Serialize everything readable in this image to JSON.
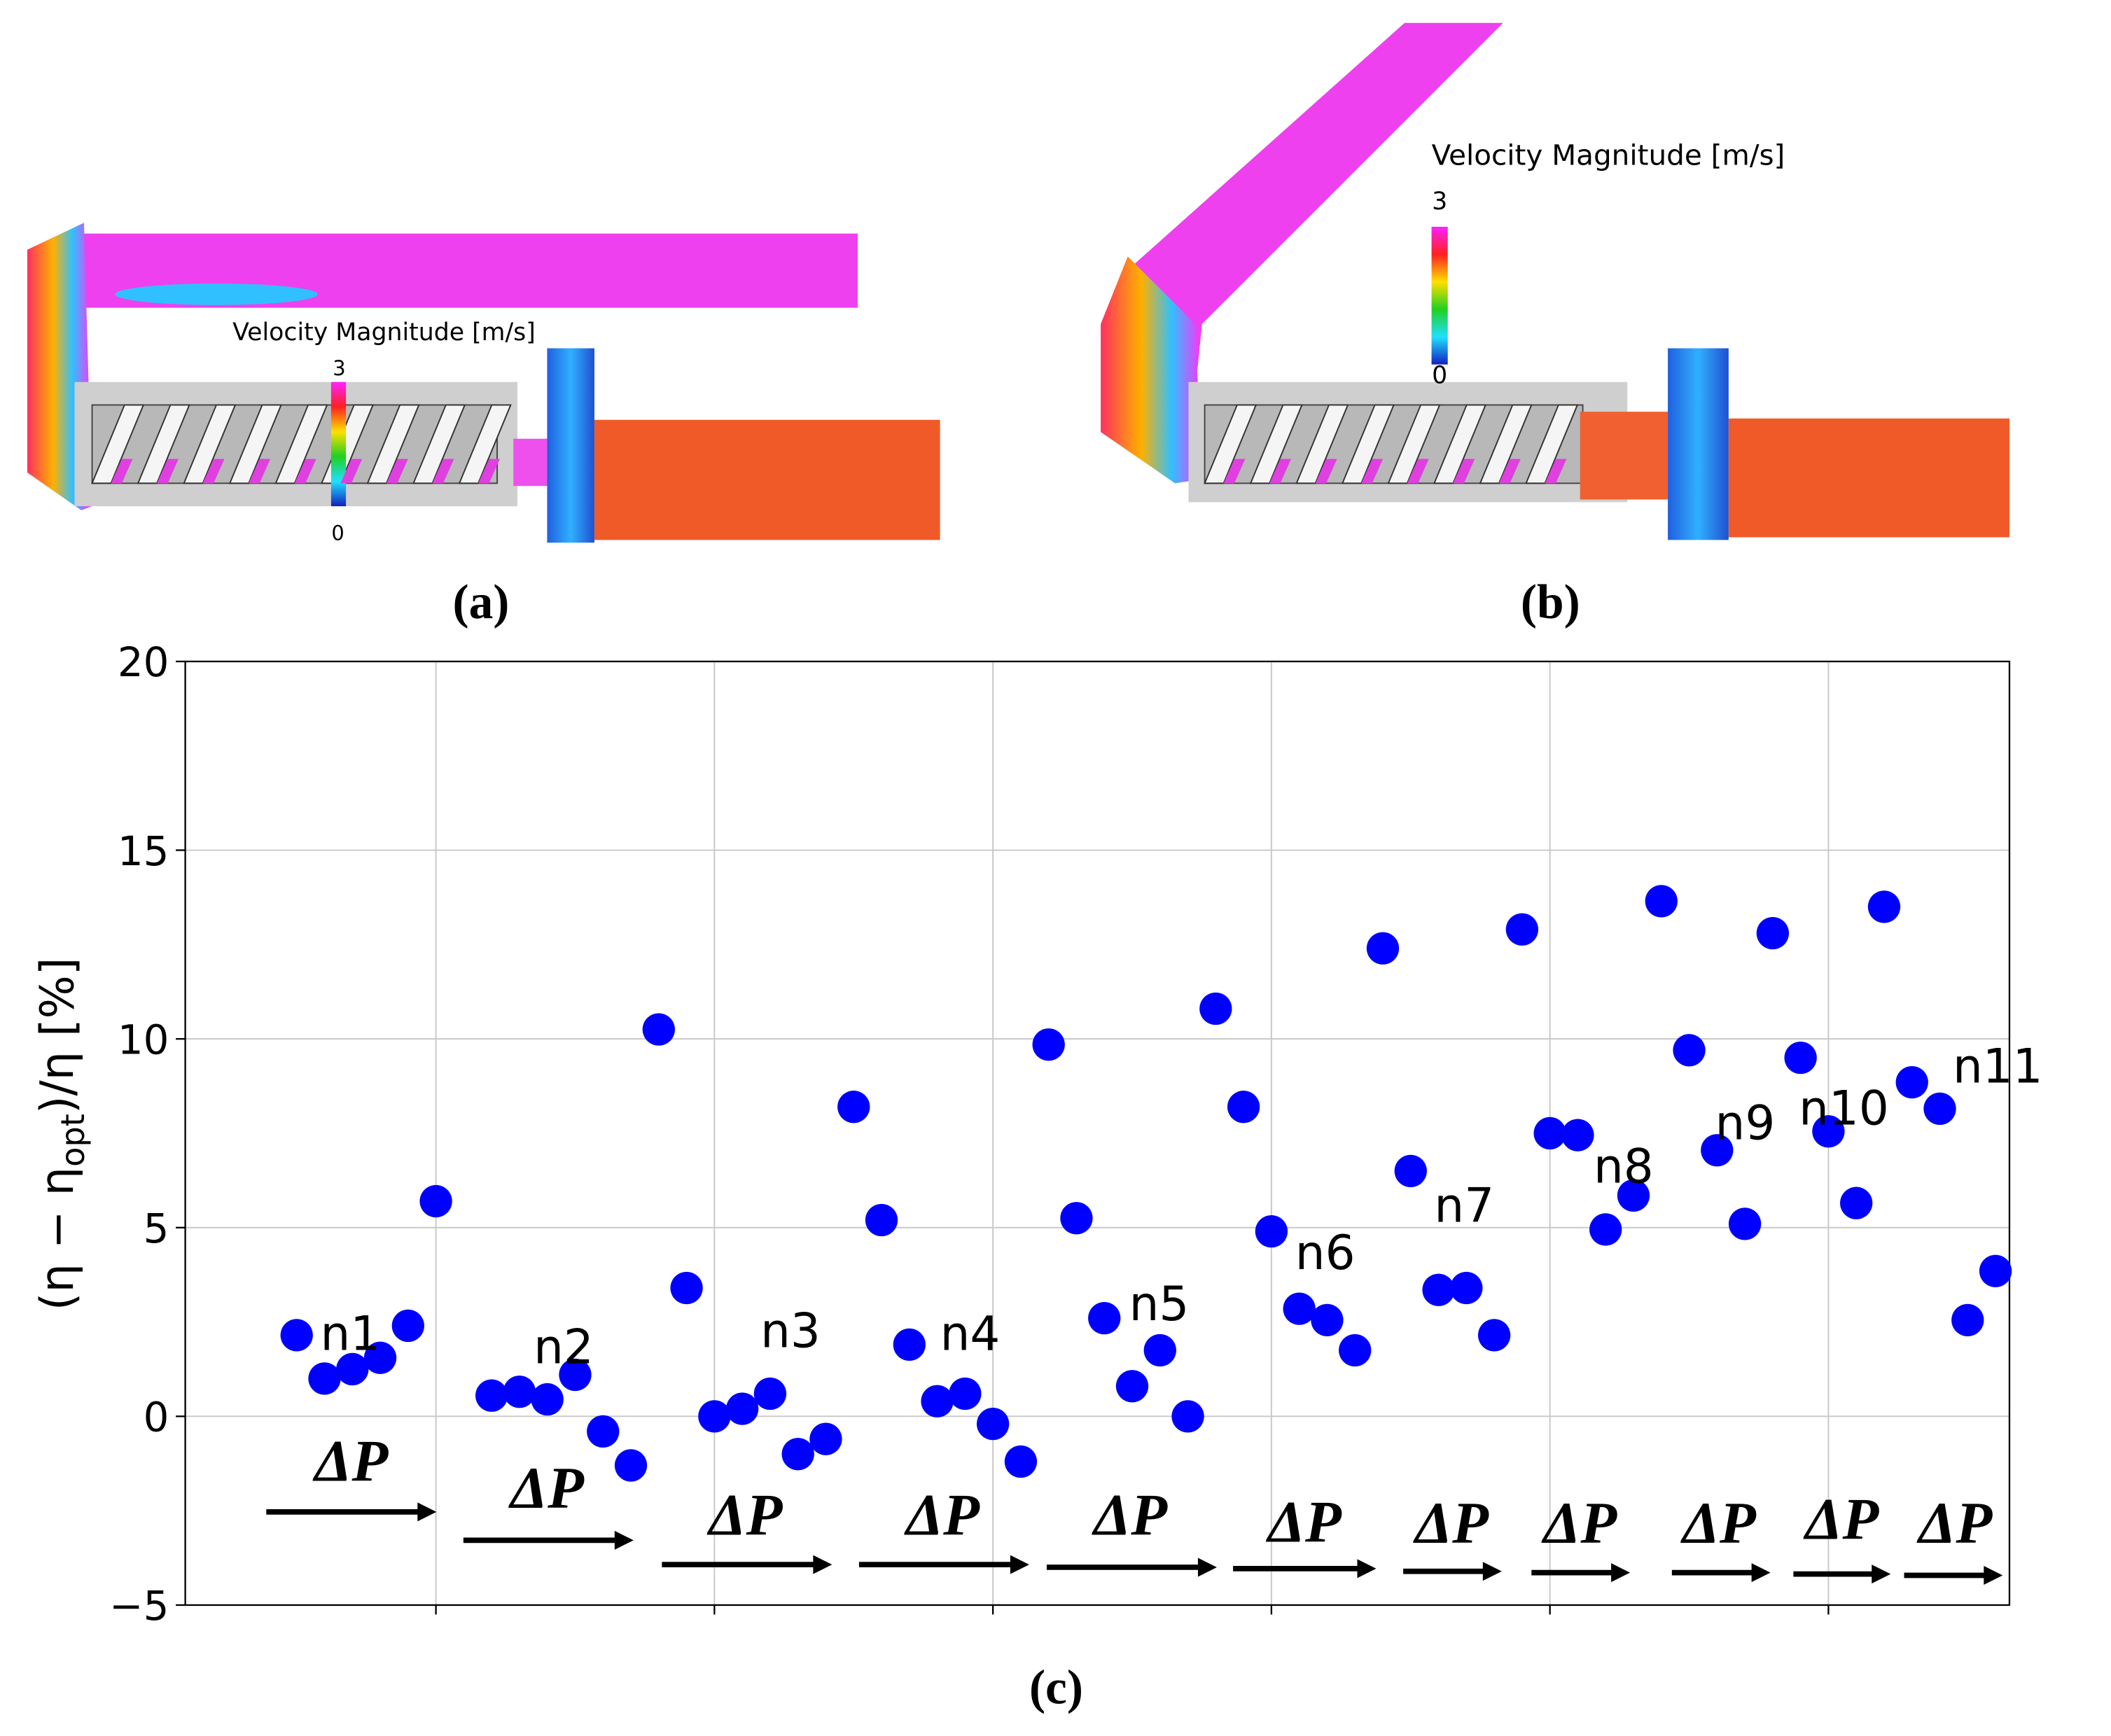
{
  "panels": {
    "a": {
      "label": "(a)",
      "colorbar_title": "Velocity Magnitude [m/s]",
      "colorbar_max": 3,
      "colorbar_min": 0
    },
    "b": {
      "label": "(b)",
      "colorbar_title": "Velocity Magnitude [m/s]",
      "colorbar_max": 3,
      "colorbar_min": 0
    }
  },
  "chart_data": {
    "type": "scatter",
    "label": "(c)",
    "y_label_parts": [
      "(η − η",
      "opt",
      ")/η [%]"
    ],
    "x": [
      0,
      1,
      2,
      3,
      4,
      5,
      7,
      8,
      9,
      10,
      11,
      12,
      13,
      14,
      15,
      16,
      17,
      18,
      19,
      20,
      21,
      22,
      23,
      24,
      25,
      26,
      27,
      28,
      29,
      30,
      31,
      32,
      33,
      34,
      35,
      36,
      37,
      38,
      39,
      40,
      41,
      42,
      43,
      44,
      45,
      46,
      47,
      48,
      49,
      50,
      51,
      52,
      53,
      54,
      55,
      56,
      57,
      58,
      59,
      60,
      61
    ],
    "values": [
      2.15,
      1.0,
      1.25,
      1.55,
      2.4,
      5.7,
      0.55,
      0.65,
      0.45,
      1.1,
      -0.4,
      -1.3,
      10.25,
      3.4,
      0.0,
      0.2,
      0.6,
      -1.0,
      -0.6,
      8.2,
      5.2,
      1.9,
      0.4,
      0.6,
      -0.2,
      -1.2,
      9.85,
      5.25,
      2.6,
      0.8,
      1.75,
      0.0,
      10.8,
      8.2,
      4.9,
      2.85,
      2.55,
      1.75,
      12.4,
      6.5,
      3.35,
      3.4,
      2.15,
      12.9,
      7.5,
      7.45,
      4.95,
      5.85,
      13.65,
      9.7,
      7.05,
      5.1,
      12.8,
      9.5,
      7.55,
      5.65,
      13.5,
      8.85,
      8.15,
      2.55,
      3.85
    ],
    "color": "#0000ff",
    "xlim": [
      -4,
      61.5
    ],
    "xticks": [
      5,
      15,
      25,
      35,
      45,
      55
    ],
    "ylim": [
      -5,
      20
    ],
    "yticks": [
      {
        "value": -5,
        "label": "−5"
      },
      0,
      5,
      10,
      15,
      20
    ],
    "grid": true,
    "group_labels": [
      "n1",
      "n2",
      "n3",
      "n4",
      "n5",
      "n6",
      "n7",
      "n8",
      "n9",
      "n10",
      "n11"
    ],
    "pressure_labels": [
      "ΔP",
      "ΔP",
      "ΔP",
      "ΔP",
      "ΔP",
      "ΔP",
      "ΔP",
      "ΔP",
      "ΔP",
      "ΔP",
      "ΔP"
    ]
  }
}
